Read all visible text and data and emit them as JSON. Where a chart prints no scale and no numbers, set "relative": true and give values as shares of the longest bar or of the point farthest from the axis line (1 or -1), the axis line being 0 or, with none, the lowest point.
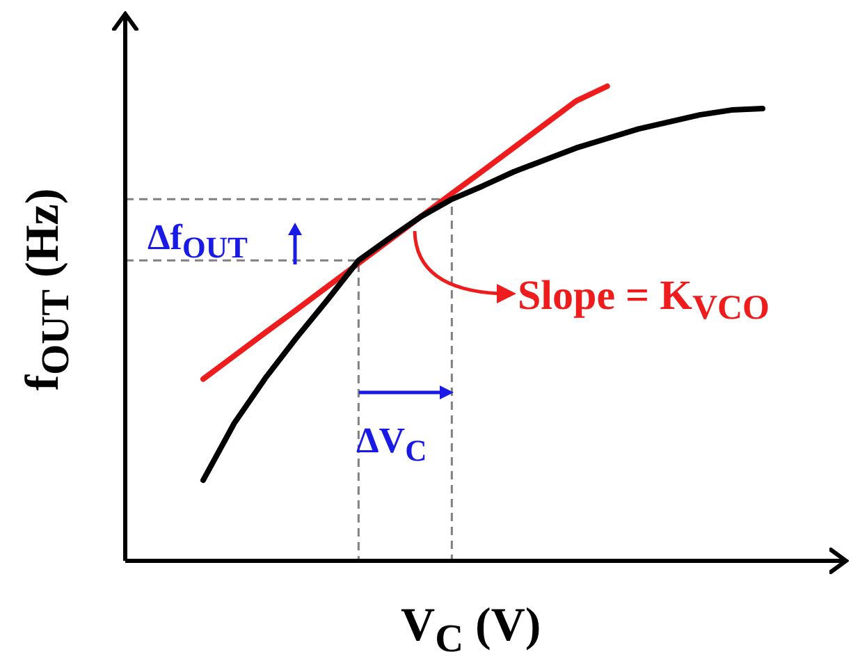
{
  "chart_data": {
    "type": "line",
    "relative": true,
    "xlabel": "V$_{C}$ (V)",
    "ylabel": "f$_{OUT}$ (Hz)",
    "legend": false,
    "marker": "none",
    "line_style": "solid",
    "categories": [
      null,
      null,
      null,
      null,
      null,
      null,
      null,
      null,
      null,
      null,
      null,
      null,
      null,
      null,
      null,
      null,
      null,
      null,
      null
    ],
    "series": [
      {
        "color": "#000000",
        "values": [
          0.17,
          0.29,
          0.385,
          0.47,
          0.55,
          0.633,
          0.68,
          0.725,
          0.762,
          0.79,
          0.82,
          0.845,
          0.87,
          0.89,
          0.91,
          0.925,
          0.94,
          0.95,
          0.953
        ]
      },
      {
        "color": "#ee1c1c",
        "values": [
          0.383,
          0.432,
          0.481,
          0.529,
          0.578,
          0.627,
          0.676,
          0.725,
          0.774,
          0.822,
          0.871,
          0.92,
          0.969,
          1,
          null,
          null,
          null,
          null,
          null
        ]
      }
    ],
    "ref_lines": [
      {
        "axis": "y",
        "value": 0.633,
        "color": "#808080",
        "line_style": "dashed"
      },
      {
        "axis": "y",
        "value": 0.762,
        "color": "#808080",
        "line_style": "dashed"
      }
    ],
    "annotations": [
      "Δf$_{OUT}$",
      "ΔV$_{C}$",
      "Slope = K$_{VCO}$"
    ]
  }
}
